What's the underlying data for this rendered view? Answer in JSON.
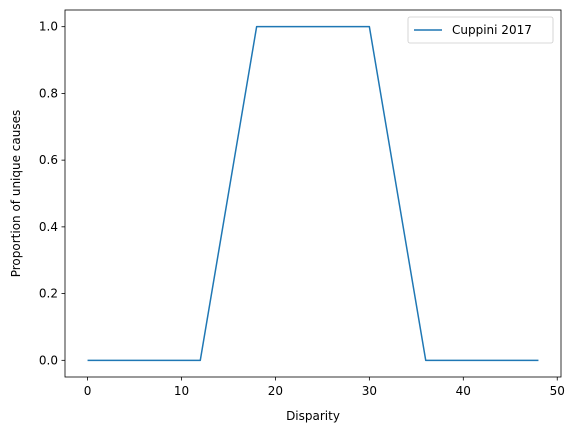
{
  "chart_data": {
    "type": "line",
    "xlabel": "Disparity",
    "ylabel": "Proportion of unique causes",
    "xlim": [
      -2.4,
      50.4
    ],
    "ylim": [
      -0.05,
      1.05
    ],
    "xticks": [
      0,
      10,
      20,
      30,
      40,
      50
    ],
    "yticks": [
      0.0,
      0.2,
      0.4,
      0.6,
      0.8,
      1.0
    ],
    "xtick_labels": [
      "0",
      "10",
      "20",
      "30",
      "40",
      "50"
    ],
    "ytick_labels": [
      "0.0",
      "0.2",
      "0.4",
      "0.6",
      "0.8",
      "1.0"
    ],
    "grid": false,
    "legend_position": "top-right",
    "series": [
      {
        "name": "Cuppini 2017",
        "color": "#1f77b4",
        "x": [
          0,
          12,
          18,
          30,
          36,
          48
        ],
        "y": [
          0,
          0,
          1,
          1,
          0,
          0
        ]
      }
    ]
  }
}
